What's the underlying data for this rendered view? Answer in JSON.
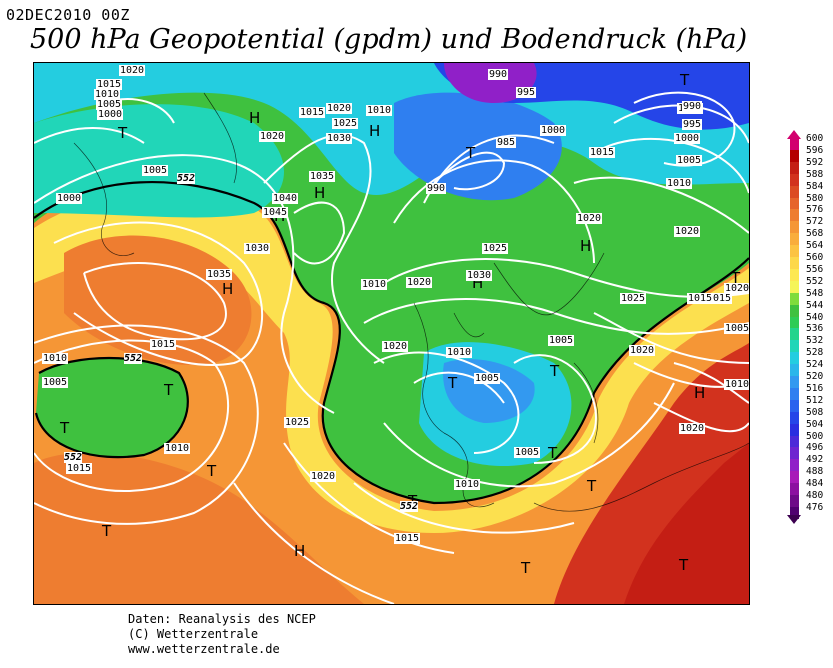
{
  "header": {
    "date": "02DEC2010 00Z",
    "title": "500 hPa Geopotential (gpdm) und Bodendruck (hPa)"
  },
  "credits": {
    "line1": "Daten: Reanalysis des NCEP",
    "line2": "(C) Wetterzentrale",
    "line3": "www.wetterzentrale.de"
  },
  "colorbar": {
    "labels": [
      "600",
      "596",
      "592",
      "588",
      "584",
      "580",
      "576",
      "572",
      "568",
      "564",
      "560",
      "556",
      "552",
      "548",
      "544",
      "540",
      "536",
      "532",
      "528",
      "524",
      "520",
      "516",
      "512",
      "508",
      "504",
      "500",
      "496",
      "492",
      "488",
      "484",
      "480",
      "476"
    ],
    "colors": [
      "#d2006e",
      "#b40000",
      "#c41e14",
      "#d2321e",
      "#dc4b23",
      "#e6642b",
      "#ee7d30",
      "#f59636",
      "#f9ad3c",
      "#fcc342",
      "#fdd84a",
      "#fde852",
      "#f5f558",
      "#7fdc3c",
      "#3fc13f",
      "#2ecc55",
      "#23d48c",
      "#21d6b8",
      "#24cde0",
      "#2bb6ea",
      "#3399f0",
      "#2f7ff0",
      "#2a62ee",
      "#2545e8",
      "#2a2ee0",
      "#4c2ad8",
      "#6e25d0",
      "#9020c8",
      "#a81ab8",
      "#8c10a0",
      "#6e0a88",
      "#500070"
    ],
    "top_color": "#d2006e",
    "bottom_color": "#3c0050"
  },
  "map": {
    "highs": [
      {
        "label": "H"
      },
      {
        "label": "H"
      },
      {
        "label": "H"
      },
      {
        "label": "H"
      },
      {
        "label": "H"
      },
      {
        "label": "H"
      },
      {
        "label": "H"
      },
      {
        "label": "H"
      },
      {
        "label": "H"
      }
    ],
    "lows": [
      {
        "label": "T"
      },
      {
        "label": "T"
      },
      {
        "label": "T"
      },
      {
        "label": "T"
      },
      {
        "label": "T"
      },
      {
        "label": "T"
      },
      {
        "label": "T"
      },
      {
        "label": "T"
      },
      {
        "label": "T"
      },
      {
        "label": "T"
      },
      {
        "label": "T"
      },
      {
        "label": "T"
      },
      {
        "label": "T"
      },
      {
        "label": "T"
      },
      {
        "label": "T"
      }
    ],
    "isobar_labels": [
      "1020",
      "1015",
      "1010",
      "1005",
      "1000",
      "1020",
      "1005",
      "1000",
      "1015",
      "1020",
      "1010",
      "1025",
      "1030",
      "1035",
      "1040",
      "1045",
      "1030",
      "1035",
      "990",
      "995",
      "985",
      "1000",
      "990",
      "1000",
      "1005",
      "1010",
      "1015",
      "1020",
      "1025",
      "1030",
      "1020",
      "1025",
      "1015",
      "1010",
      "1020",
      "1010",
      "1005",
      "1005",
      "1020",
      "1015",
      "1010",
      "1005",
      "1015",
      "1025",
      "1020",
      "1010",
      "1005",
      "1010",
      "1015",
      "1020",
      "1000",
      "995",
      "990",
      "1005",
      "1010",
      "1020",
      "1015",
      "1020"
    ],
    "contour_labels": [
      "552",
      "552",
      "552",
      "552"
    ]
  }
}
